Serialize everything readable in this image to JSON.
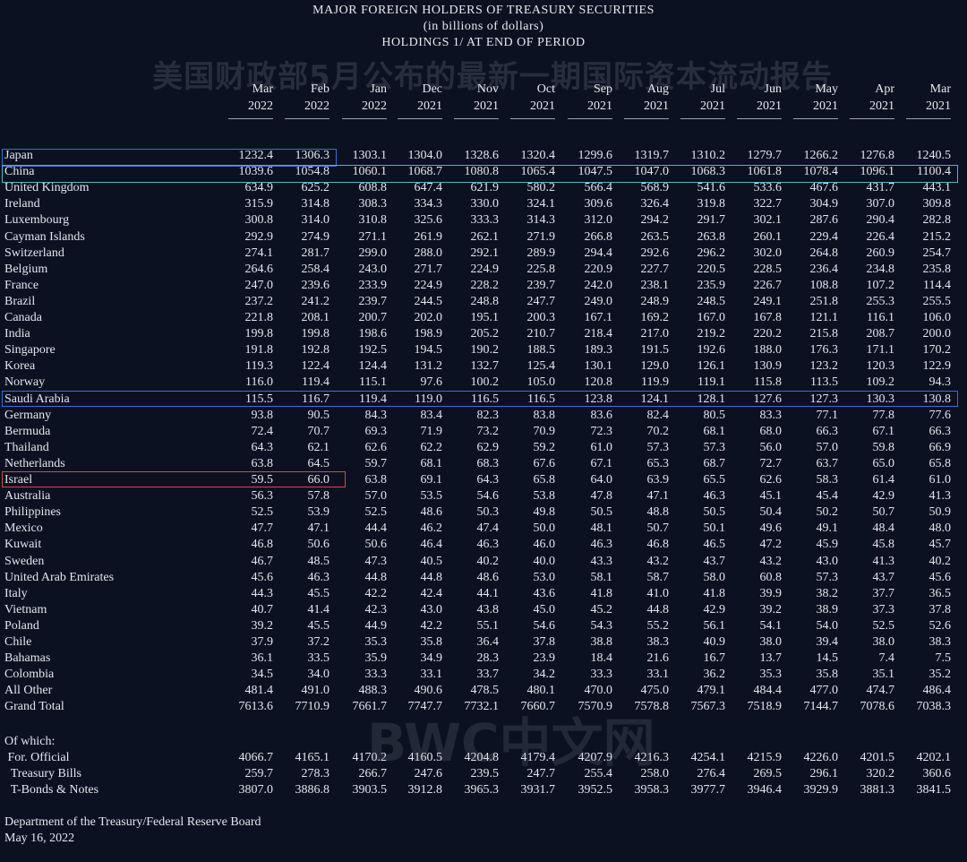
{
  "header": {
    "line1": "MAJOR FOREIGN HOLDERS OF TREASURY SECURITIES",
    "line2": "(in billions of dollars)",
    "line3": "HOLDINGS 1/ AT END OF PERIOD"
  },
  "watermark_top": "美国财政部5月公布的最新一期国际资本流动报告",
  "watermark_bottom": "BWC中文网",
  "columns": [
    {
      "month": "Mar",
      "year": "2022"
    },
    {
      "month": "Feb",
      "year": "2022"
    },
    {
      "month": "Jan",
      "year": "2022"
    },
    {
      "month": "Dec",
      "year": "2021"
    },
    {
      "month": "Nov",
      "year": "2021"
    },
    {
      "month": "Oct",
      "year": "2021"
    },
    {
      "month": "Sep",
      "year": "2021"
    },
    {
      "month": "Aug",
      "year": "2021"
    },
    {
      "month": "Jul",
      "year": "2021"
    },
    {
      "month": "Jun",
      "year": "2021"
    },
    {
      "month": "May",
      "year": "2021"
    },
    {
      "month": "Apr",
      "year": "2021"
    },
    {
      "month": "Mar",
      "year": "2021"
    }
  ],
  "rows": [
    {
      "name": "Japan",
      "values": [
        "1232.4",
        "1306.3",
        "1303.1",
        "1304.0",
        "1328.6",
        "1320.4",
        "1299.6",
        "1319.7",
        "1310.2",
        "1279.7",
        "1266.2",
        "1276.8",
        "1240.5"
      ]
    },
    {
      "name": "China",
      "values": [
        "1039.6",
        "1054.8",
        "1060.1",
        "1068.7",
        "1080.8",
        "1065.4",
        "1047.5",
        "1047.0",
        "1068.3",
        "1061.8",
        "1078.4",
        "1096.1",
        "1100.4"
      ]
    },
    {
      "name": "United Kingdom",
      "values": [
        "634.9",
        "625.2",
        "608.8",
        "647.4",
        "621.9",
        "580.2",
        "566.4",
        "568.9",
        "541.6",
        "533.6",
        "467.6",
        "431.7",
        "443.1"
      ]
    },
    {
      "name": "Ireland",
      "values": [
        "315.9",
        "314.8",
        "308.3",
        "334.3",
        "330.0",
        "324.1",
        "309.6",
        "326.4",
        "319.8",
        "322.7",
        "304.9",
        "307.0",
        "309.8"
      ]
    },
    {
      "name": "Luxembourg",
      "values": [
        "300.8",
        "314.0",
        "310.8",
        "325.6",
        "333.3",
        "314.3",
        "312.0",
        "294.2",
        "291.7",
        "302.1",
        "287.6",
        "290.4",
        "282.8"
      ]
    },
    {
      "name": "Cayman Islands",
      "values": [
        "292.9",
        "274.9",
        "271.1",
        "261.9",
        "262.1",
        "271.9",
        "266.8",
        "263.5",
        "263.8",
        "260.1",
        "229.4",
        "226.4",
        "215.2"
      ]
    },
    {
      "name": "Switzerland",
      "values": [
        "274.1",
        "281.7",
        "299.0",
        "288.0",
        "292.1",
        "289.9",
        "294.4",
        "292.6",
        "296.2",
        "302.0",
        "264.8",
        "260.9",
        "254.7"
      ]
    },
    {
      "name": "Belgium",
      "values": [
        "264.6",
        "258.4",
        "243.0",
        "271.7",
        "224.9",
        "225.8",
        "220.9",
        "227.7",
        "220.5",
        "228.5",
        "236.4",
        "234.8",
        "235.8"
      ]
    },
    {
      "name": "France",
      "values": [
        "247.0",
        "239.6",
        "233.9",
        "224.9",
        "228.2",
        "239.7",
        "242.0",
        "238.1",
        "235.9",
        "226.7",
        "108.8",
        "107.2",
        "114.4"
      ]
    },
    {
      "name": "Brazil",
      "values": [
        "237.2",
        "241.2",
        "239.7",
        "244.5",
        "248.8",
        "247.7",
        "249.0",
        "248.9",
        "248.5",
        "249.1",
        "251.8",
        "255.3",
        "255.5"
      ]
    },
    {
      "name": "Canada",
      "values": [
        "221.8",
        "208.1",
        "200.7",
        "202.0",
        "195.1",
        "200.3",
        "167.1",
        "169.2",
        "167.0",
        "167.8",
        "121.1",
        "116.1",
        "106.0"
      ]
    },
    {
      "name": "India",
      "values": [
        "199.8",
        "199.8",
        "198.6",
        "198.9",
        "205.2",
        "210.7",
        "218.4",
        "217.0",
        "219.2",
        "220.2",
        "215.8",
        "208.7",
        "200.0"
      ]
    },
    {
      "name": "Singapore",
      "values": [
        "191.8",
        "192.8",
        "192.5",
        "194.5",
        "190.2",
        "188.5",
        "189.3",
        "191.5",
        "192.6",
        "188.0",
        "176.3",
        "171.1",
        "170.2"
      ]
    },
    {
      "name": "Korea",
      "values": [
        "119.3",
        "122.4",
        "124.4",
        "131.2",
        "132.7",
        "125.4",
        "130.1",
        "129.0",
        "126.1",
        "130.9",
        "123.2",
        "120.3",
        "122.9"
      ]
    },
    {
      "name": "Norway",
      "values": [
        "116.0",
        "119.4",
        "115.1",
        "97.6",
        "100.2",
        "105.0",
        "120.8",
        "119.9",
        "119.1",
        "115.8",
        "113.5",
        "109.2",
        "94.3"
      ]
    },
    {
      "name": "Saudi Arabia",
      "values": [
        "115.5",
        "116.7",
        "119.4",
        "119.0",
        "116.5",
        "116.5",
        "123.8",
        "124.1",
        "128.1",
        "127.6",
        "127.3",
        "130.3",
        "130.8"
      ]
    },
    {
      "name": "Germany",
      "values": [
        "93.8",
        "90.5",
        "84.3",
        "83.4",
        "82.3",
        "83.8",
        "83.6",
        "82.4",
        "80.5",
        "83.3",
        "77.1",
        "77.8",
        "77.6"
      ]
    },
    {
      "name": "Bermuda",
      "values": [
        "72.4",
        "70.7",
        "69.3",
        "71.9",
        "73.2",
        "70.9",
        "72.3",
        "70.2",
        "68.1",
        "68.0",
        "66.3",
        "67.1",
        "66.3"
      ]
    },
    {
      "name": "Thailand",
      "values": [
        "64.3",
        "62.1",
        "62.6",
        "62.2",
        "62.9",
        "59.2",
        "61.0",
        "57.3",
        "57.3",
        "56.0",
        "57.0",
        "59.8",
        "66.9"
      ]
    },
    {
      "name": "Netherlands",
      "values": [
        "63.8",
        "64.5",
        "59.7",
        "68.1",
        "68.3",
        "67.6",
        "67.1",
        "65.3",
        "68.7",
        "72.7",
        "63.7",
        "65.0",
        "65.8"
      ]
    },
    {
      "name": "Israel",
      "values": [
        "59.5",
        "66.0",
        "63.8",
        "69.1",
        "64.3",
        "65.8",
        "64.0",
        "63.9",
        "65.5",
        "62.6",
        "58.3",
        "61.4",
        "61.0"
      ]
    },
    {
      "name": "Australia",
      "values": [
        "56.3",
        "57.8",
        "57.0",
        "53.5",
        "54.6",
        "53.8",
        "47.8",
        "47.1",
        "46.3",
        "45.1",
        "45.4",
        "42.9",
        "41.3"
      ]
    },
    {
      "name": "Philippines",
      "values": [
        "52.5",
        "53.9",
        "52.5",
        "48.6",
        "50.3",
        "49.8",
        "50.5",
        "48.8",
        "50.5",
        "50.4",
        "50.2",
        "50.7",
        "50.9"
      ]
    },
    {
      "name": "Mexico",
      "values": [
        "47.7",
        "47.1",
        "44.4",
        "46.2",
        "47.4",
        "50.0",
        "48.1",
        "50.7",
        "50.1",
        "49.6",
        "49.1",
        "48.4",
        "48.0"
      ]
    },
    {
      "name": "Kuwait",
      "values": [
        "46.8",
        "50.6",
        "50.6",
        "46.4",
        "46.3",
        "46.0",
        "46.3",
        "46.8",
        "46.5",
        "47.2",
        "45.9",
        "45.8",
        "45.7"
      ]
    },
    {
      "name": "Sweden",
      "values": [
        "46.7",
        "48.5",
        "47.3",
        "40.5",
        "40.2",
        "40.0",
        "43.3",
        "43.2",
        "43.7",
        "43.2",
        "43.0",
        "41.3",
        "40.2"
      ]
    },
    {
      "name": "United Arab Emirates",
      "values": [
        "45.6",
        "46.3",
        "44.8",
        "44.8",
        "48.6",
        "53.0",
        "58.1",
        "58.7",
        "58.0",
        "60.8",
        "57.3",
        "43.7",
        "45.6"
      ]
    },
    {
      "name": "Italy",
      "values": [
        "44.3",
        "45.5",
        "42.2",
        "42.4",
        "44.1",
        "43.6",
        "41.8",
        "41.0",
        "41.8",
        "39.9",
        "38.2",
        "37.7",
        "36.5"
      ]
    },
    {
      "name": "Vietnam",
      "values": [
        "40.7",
        "41.4",
        "42.3",
        "43.0",
        "43.8",
        "45.0",
        "45.2",
        "44.8",
        "42.9",
        "39.2",
        "38.9",
        "37.3",
        "37.8"
      ]
    },
    {
      "name": "Poland",
      "values": [
        "39.2",
        "45.5",
        "44.9",
        "42.2",
        "55.1",
        "54.6",
        "54.3",
        "55.2",
        "56.1",
        "54.1",
        "54.0",
        "52.5",
        "52.6"
      ]
    },
    {
      "name": "Chile",
      "values": [
        "37.9",
        "37.2",
        "35.3",
        "35.8",
        "36.4",
        "37.8",
        "38.8",
        "38.3",
        "40.9",
        "38.0",
        "39.4",
        "38.0",
        "38.3"
      ]
    },
    {
      "name": "Bahamas",
      "values": [
        "36.1",
        "33.5",
        "35.9",
        "34.9",
        "28.3",
        "23.9",
        "18.4",
        "21.6",
        "16.7",
        "13.7",
        "14.5",
        "7.4",
        "7.5"
      ]
    },
    {
      "name": "Colombia",
      "values": [
        "34.5",
        "34.0",
        "33.3",
        "33.1",
        "33.7",
        "34.2",
        "33.3",
        "33.1",
        "36.2",
        "35.3",
        "35.8",
        "35.1",
        "35.2"
      ]
    },
    {
      "name": "All Other",
      "values": [
        "481.4",
        "491.0",
        "488.3",
        "490.6",
        "478.5",
        "480.1",
        "470.0",
        "475.0",
        "479.1",
        "484.4",
        "477.0",
        "474.7",
        "486.4"
      ]
    },
    {
      "name": "Grand Total",
      "values": [
        "7613.6",
        "7710.9",
        "7661.7",
        "7747.7",
        "7732.1",
        "7660.7",
        "7570.9",
        "7578.8",
        "7567.3",
        "7518.9",
        "7144.7",
        "7078.6",
        "7038.3"
      ]
    }
  ],
  "of_which": {
    "label": "Of which:",
    "rows": [
      {
        "name": " For. Official",
        "values": [
          "4066.7",
          "4165.1",
          "4170.2",
          "4160.5",
          "4204.8",
          "4179.4",
          "4207.9",
          "4216.3",
          "4254.1",
          "4215.9",
          "4226.0",
          "4201.5",
          "4202.1"
        ]
      },
      {
        "name": "  Treasury Bills",
        "values": [
          "259.7",
          "278.3",
          "266.7",
          "247.6",
          "239.5",
          "247.7",
          "255.4",
          "258.0",
          "276.4",
          "269.5",
          "296.1",
          "320.2",
          "360.6"
        ]
      },
      {
        "name": "  T-Bonds & Notes",
        "values": [
          "3807.0",
          "3886.8",
          "3903.5",
          "3912.8",
          "3965.3",
          "3931.7",
          "3952.5",
          "3958.3",
          "3977.7",
          "3946.4",
          "3929.9",
          "3881.3",
          "3841.5"
        ]
      }
    ]
  },
  "footer": {
    "source": "Department of the Treasury/Federal Reserve Board",
    "date": "May 16, 2022"
  },
  "colors": {
    "background": "#0b1120",
    "box_blue": "#3a6fd8",
    "box_cyan": "#4fb6c9",
    "box_red": "#d84a3a"
  }
}
